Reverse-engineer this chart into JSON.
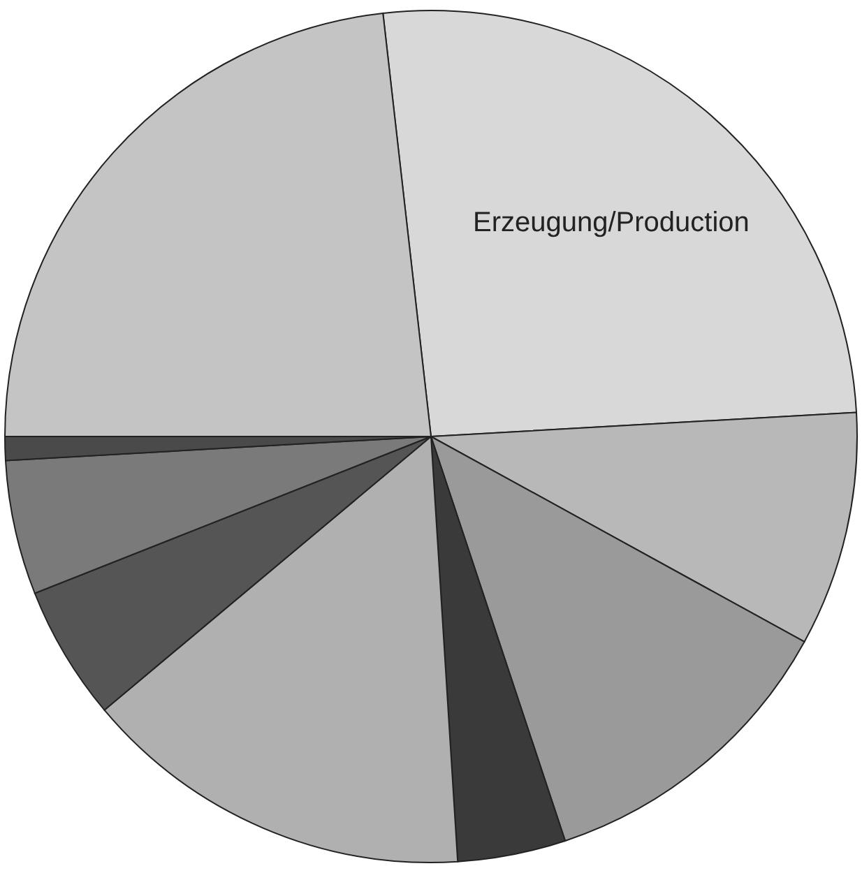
{
  "chart_data": {
    "type": "pie",
    "categories": [
      "Erzeugung/Production",
      null,
      null,
      null,
      null,
      null,
      null,
      null,
      null
    ],
    "values": [
      25.9,
      8.9,
      11.9,
      4.1,
      14.9,
      5.1,
      5.1,
      0.9,
      23.2
    ],
    "colors": [
      "#d8d8d8",
      "#b8b8b8",
      "#9a9a9a",
      "#3a3a3a",
      "#b0b0b0",
      "#555555",
      "#7a7a7a",
      "#4a4a4a",
      "#c4c4c4"
    ]
  }
}
